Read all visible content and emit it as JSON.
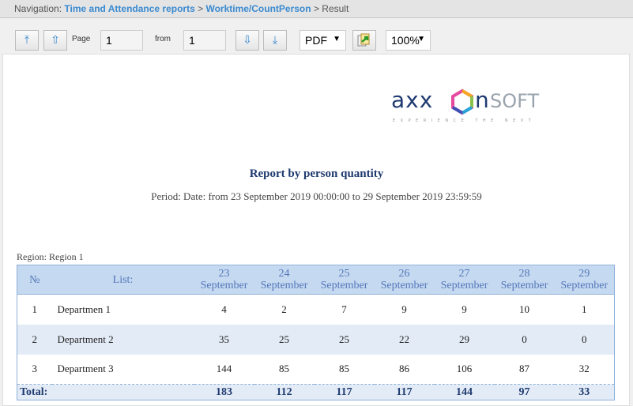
{
  "nav": {
    "prefix": "Navigation:",
    "crumbs": [
      "Time and Attendance reports",
      "Worktime/CountPerson"
    ],
    "current": "Result",
    "sep": ">"
  },
  "toolbar": {
    "first_icon": "⤒",
    "prev_icon": "⇧",
    "page_label": "Page",
    "page_value": "1",
    "from_label": "from",
    "from_value": "1",
    "next_icon": "⇩",
    "last_icon": "⤓",
    "format": "PDF",
    "zoom": "100%",
    "export_icon": "export-icon"
  },
  "logo": {
    "text": "axxonsoft",
    "tagline": "EXPERIENCE THE NEXT"
  },
  "report": {
    "title": "Report by person quantity",
    "period": "Period: Date: from 23 September 2019 00:00:00 to 29 September 2019 23:59:59",
    "region": "Region: Region 1"
  },
  "table": {
    "headers": {
      "num": "№",
      "list": "List:",
      "dates": [
        [
          "23",
          "September"
        ],
        [
          "24",
          "September"
        ],
        [
          "25",
          "September"
        ],
        [
          "26",
          "September"
        ],
        [
          "27",
          "September"
        ],
        [
          "28",
          "September"
        ],
        [
          "29",
          "September"
        ]
      ]
    },
    "rows": [
      {
        "num": "1",
        "name": "Departmen 1",
        "values": [
          "4",
          "2",
          "7",
          "9",
          "9",
          "10",
          "1"
        ]
      },
      {
        "num": "2",
        "name": "Department 2",
        "values": [
          "35",
          "25",
          "25",
          "22",
          "29",
          "0",
          "0"
        ]
      },
      {
        "num": "3",
        "name": "Department 3",
        "values": [
          "144",
          "85",
          "85",
          "86",
          "106",
          "87",
          "32"
        ]
      }
    ],
    "total": {
      "label": "Total:",
      "values": [
        "183",
        "112",
        "117",
        "117",
        "144",
        "97",
        "33"
      ]
    }
  }
}
